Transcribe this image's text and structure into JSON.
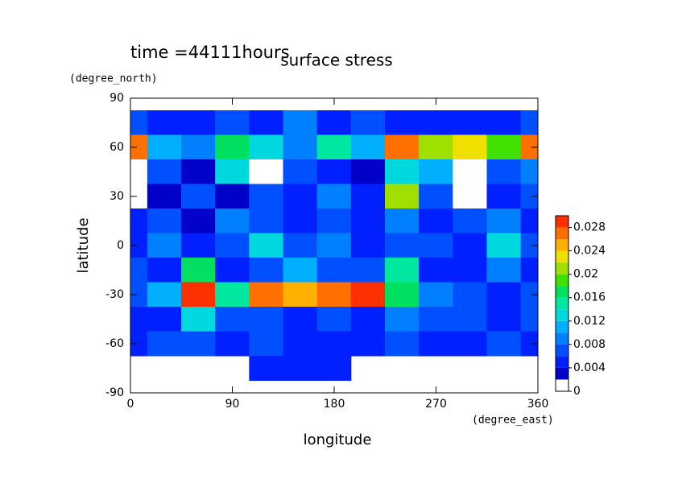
{
  "chart_data": {
    "type": "contour",
    "title": "surface stress",
    "subtitle": "time =44111hours",
    "x_label": "longitude",
    "x_unit": "(degree_east)",
    "y_label": "latitude",
    "y_unit": "(degree_north)",
    "x": [
      0,
      30,
      60,
      90,
      120,
      150,
      180,
      210,
      240,
      270,
      300,
      330,
      360
    ],
    "y": [
      75,
      60,
      45,
      30,
      15,
      0,
      -15,
      -30,
      -45,
      -60,
      -75
    ],
    "z": [
      [
        0.006,
        0.005,
        0.004,
        0.006,
        0.005,
        0.008,
        0.004,
        0.006,
        0.005,
        0.004,
        0.005,
        0.004,
        0.006
      ],
      [
        0.026,
        0.01,
        0.008,
        0.016,
        0.012,
        0.008,
        0.014,
        0.01,
        0.026,
        0.02,
        0.022,
        0.018,
        0.026
      ],
      [
        0.001,
        0.006,
        0.003,
        0.012,
        0.001,
        0.006,
        0.004,
        0.003,
        0.012,
        0.01,
        0.001,
        0.006,
        0.008
      ],
      [
        0.001,
        0.003,
        0.006,
        0.003,
        0.006,
        0.004,
        0.008,
        0.004,
        0.02,
        0.006,
        0.001,
        0.004,
        0.006
      ],
      [
        0.004,
        0.006,
        0.002,
        0.008,
        0.006,
        0.004,
        0.006,
        0.004,
        0.008,
        0.004,
        0.006,
        0.008,
        0.004
      ],
      [
        0.004,
        0.008,
        0.004,
        0.006,
        0.012,
        0.006,
        0.008,
        0.004,
        0.006,
        0.006,
        0.004,
        0.012,
        0.006
      ],
      [
        0.006,
        0.004,
        0.016,
        0.004,
        0.006,
        0.01,
        0.006,
        0.006,
        0.014,
        0.004,
        0.004,
        0.008,
        0.004
      ],
      [
        0.006,
        0.01,
        0.028,
        0.014,
        0.026,
        0.024,
        0.026,
        0.028,
        0.016,
        0.008,
        0.006,
        0.004,
        0.006
      ],
      [
        0.004,
        0.004,
        0.012,
        0.006,
        0.006,
        0.004,
        0.006,
        0.004,
        0.008,
        0.006,
        0.006,
        0.004,
        0.006
      ],
      [
        0.004,
        0.006,
        0.006,
        0.004,
        0.006,
        0.004,
        0.004,
        0.004,
        0.006,
        0.004,
        0.004,
        0.006,
        0.004
      ],
      [
        null,
        null,
        null,
        null,
        0.004,
        0.004,
        0.004,
        null,
        null,
        null,
        null,
        null,
        null
      ]
    ],
    "xlim": [
      0,
      360
    ],
    "ylim": [
      -90,
      90
    ],
    "xticks": [
      0,
      90,
      180,
      270,
      360
    ],
    "yticks": [
      90,
      60,
      30,
      0,
      -30,
      -60,
      -90
    ],
    "levels": [
      0,
      0.002,
      0.004,
      0.006,
      0.008,
      0.01,
      0.012,
      0.014,
      0.016,
      0.018,
      0.02,
      0.022,
      0.024,
      0.026,
      0.028,
      0.03
    ],
    "colors": [
      "#ffffff",
      "#0000c8",
      "#0020ff",
      "#0050ff",
      "#0080ff",
      "#00b0ff",
      "#00d8e0",
      "#00e8a0",
      "#00e060",
      "#40e000",
      "#a0e000",
      "#f0e000",
      "#ffb000",
      "#ff7000",
      "#ff3000"
    ],
    "colorbar_ticks": [
      0,
      0.004,
      0.008,
      0.012,
      0.016,
      0.02,
      0.024,
      0.028
    ]
  }
}
